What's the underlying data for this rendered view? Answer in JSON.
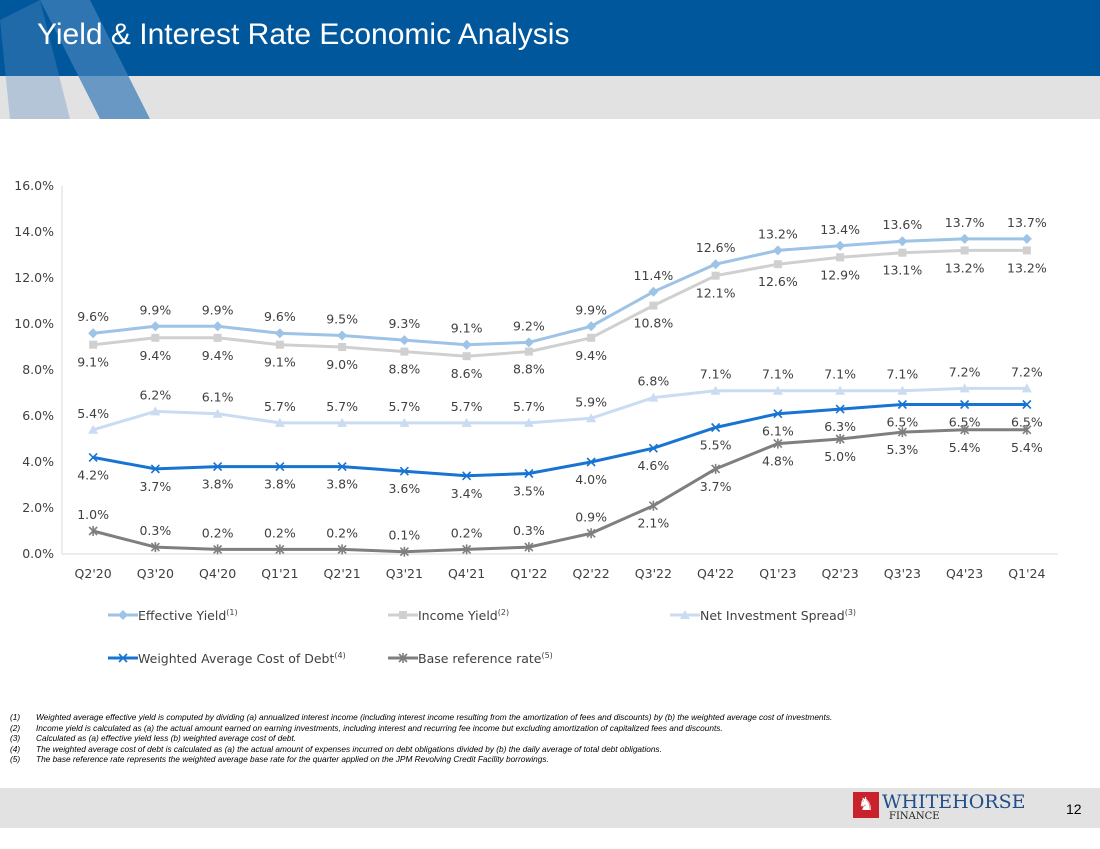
{
  "title": "Yield & Interest Rate Economic Analysis",
  "chart_data": {
    "type": "line",
    "categories": [
      "Q2'20",
      "Q3'20",
      "Q4'20",
      "Q1'21",
      "Q2'21",
      "Q3'21",
      "Q4'21",
      "Q1'22",
      "Q2'22",
      "Q3'22",
      "Q4'22",
      "Q1'23",
      "Q2'23",
      "Q3'23",
      "Q4'23",
      "Q1'24"
    ],
    "ylim": [
      0,
      16
    ],
    "yticks": [
      "0.0%",
      "2.0%",
      "4.0%",
      "6.0%",
      "8.0%",
      "10.0%",
      "12.0%",
      "14.0%",
      "16.0%"
    ],
    "legend_position": "bottom",
    "series": [
      {
        "name": "Effective Yield",
        "sup": "(1)",
        "color": "#9dc3e6",
        "marker": "diamond",
        "label_pos": "above",
        "values": [
          9.6,
          9.9,
          9.9,
          9.6,
          9.5,
          9.3,
          9.1,
          9.2,
          9.9,
          11.4,
          12.6,
          13.2,
          13.4,
          13.6,
          13.7,
          13.7
        ]
      },
      {
        "name": "Income Yield",
        "sup": "(2)",
        "color": "#d0d0d0",
        "marker": "square",
        "label_pos": "below",
        "values": [
          9.1,
          9.4,
          9.4,
          9.1,
          9.0,
          8.8,
          8.6,
          8.8,
          9.4,
          10.8,
          12.1,
          12.6,
          12.9,
          13.1,
          13.2,
          13.2
        ]
      },
      {
        "name": "Net Investment Spread",
        "sup": "(3)",
        "color": "#c9dcf2",
        "marker": "triangle",
        "label_pos": "above",
        "values": [
          5.4,
          6.2,
          6.1,
          5.7,
          5.7,
          5.7,
          5.7,
          5.7,
          5.9,
          6.8,
          7.1,
          7.1,
          7.1,
          7.1,
          7.2,
          7.2
        ]
      },
      {
        "name": "Weighted Average Cost of Debt",
        "sup": "(4)",
        "color": "#1874d2",
        "marker": "x",
        "label_pos": "below",
        "values": [
          4.2,
          3.7,
          3.8,
          3.8,
          3.8,
          3.6,
          3.4,
          3.5,
          4.0,
          4.6,
          5.5,
          6.1,
          6.3,
          6.5,
          6.5,
          6.5
        ]
      },
      {
        "name": "Base reference rate",
        "sup": "(5)",
        "color": "#7f7f7f",
        "marker": "star",
        "label_pos": "mixed",
        "values": [
          1.0,
          0.3,
          0.2,
          0.2,
          0.2,
          0.1,
          0.2,
          0.3,
          0.9,
          2.1,
          3.7,
          4.8,
          5.0,
          5.3,
          5.4,
          5.4
        ]
      }
    ]
  },
  "notes": [
    {
      "n": "(1)",
      "t": "Weighted average effective yield is computed by dividing (a) annualized interest income (including interest income resulting from the amortization of fees and discounts) by (b) the weighted average cost of investments."
    },
    {
      "n": "(2)",
      "t": "Income yield is calculated as (a) the actual amount earned on earning investments, including interest and recurring fee income but excluding amortization of capitalized fees and discounts."
    },
    {
      "n": "(3)",
      "t": "Calculated as (a) effective yield less (b) weighted average cost of debt."
    },
    {
      "n": "(4)",
      "t": "The weighted average cost of debt is calculated as (a) the actual amount of expenses incurred on debt obligations divided by (b) the daily average of total debt obligations."
    },
    {
      "n": "(5)",
      "t": "The base reference rate represents the weighted average base rate for the quarter applied on the JPM Revolving Credit Facility borrowings."
    }
  ],
  "logo": {
    "name": "WHITEHORSE",
    "sub": "FINANCE"
  },
  "page_number": "12"
}
